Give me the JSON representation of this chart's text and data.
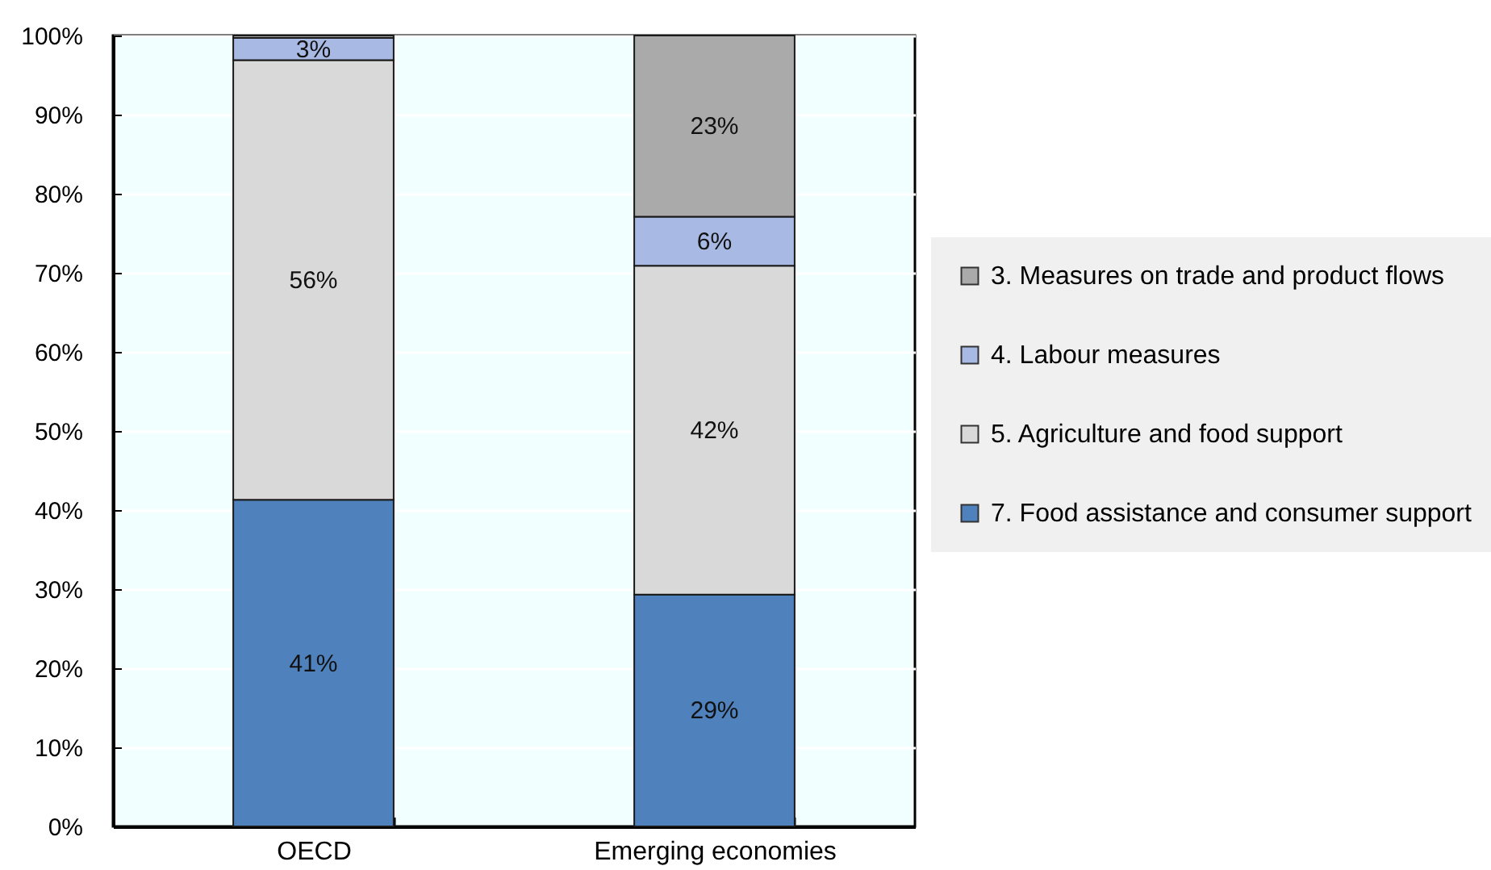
{
  "chart_data": {
    "type": "bar",
    "stacked": true,
    "categories": [
      "OECD",
      "Emerging economies"
    ],
    "series": [
      {
        "name": "7. Food assistance and consumer support",
        "color": "#4f81bd",
        "values": [
          41.3,
          29.3
        ],
        "value_labels": [
          "41%",
          "29%"
        ]
      },
      {
        "name": "5. Agriculture and food support",
        "color": "#d9d9d9",
        "values": [
          55.6,
          41.6
        ],
        "value_labels": [
          "56%",
          "42%"
        ]
      },
      {
        "name": "4. Labour measures",
        "color": "#a8b9e3",
        "values": [
          2.8,
          6.2
        ],
        "value_labels": [
          "3%",
          "6%"
        ]
      },
      {
        "name": "3. Measures on trade and product flows",
        "color": "#aaaaaa",
        "values": [
          0.3,
          22.9
        ],
        "value_labels": [
          null,
          "23%"
        ]
      }
    ],
    "ylim": [
      0,
      100
    ],
    "yticks": [
      {
        "value": 0,
        "label": "0%"
      },
      {
        "value": 10,
        "label": "10%"
      },
      {
        "value": 20,
        "label": "20%"
      },
      {
        "value": 30,
        "label": "30%"
      },
      {
        "value": 40,
        "label": "40%"
      },
      {
        "value": 50,
        "label": "50%"
      },
      {
        "value": 60,
        "label": "60%"
      },
      {
        "value": 70,
        "label": "70%"
      },
      {
        "value": 80,
        "label": "80%"
      },
      {
        "value": 90,
        "label": "90%"
      },
      {
        "value": 100,
        "label": "100%"
      }
    ],
    "grid": true,
    "legend": "right"
  }
}
